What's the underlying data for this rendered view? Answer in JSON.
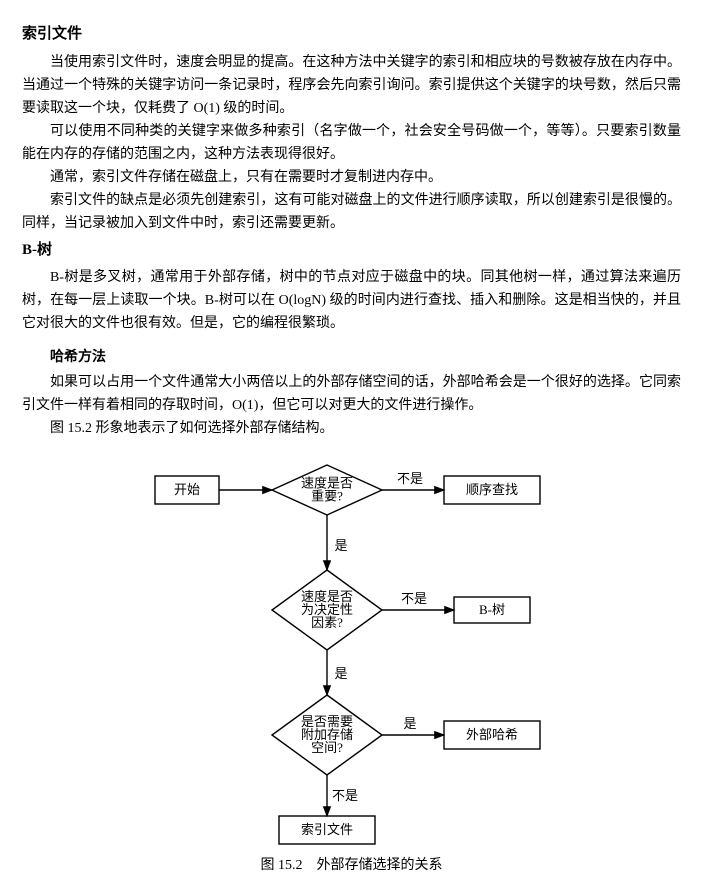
{
  "section1": {
    "heading": "索引文件",
    "p1": "当使用索引文件时，速度会明显的提高。在这种方法中关键字的索引和相应块的号数被存放在内存中。当通过一个特殊的关键字访问一条记录时，程序会先向索引询问。索引提供这个关键字的块号数，然后只需要读取这一个块，仅耗费了 O(1) 级的时间。",
    "p2": "可以使用不同种类的关键字来做多种索引（名字做一个，社会安全号码做一个，等等）。只要索引数量能在内存的存储的范围之内，这种方法表现得很好。",
    "p3": "通常，索引文件存储在磁盘上，只有在需要时才复制进内存中。",
    "p4": "索引文件的缺点是必须先创建索引，这有可能对磁盘上的文件进行顺序读取，所以创建索引是很慢的。同样，当记录被加入到文件中时，索引还需要更新。"
  },
  "section2": {
    "heading": "B-树",
    "p1": "B-树是多叉树，通常用于外部存储，树中的节点对应于磁盘中的块。同其他树一样，通过算法来遍历树，在每一层上读取一个块。B-树可以在 O(logN) 级的时间内进行查找、插入和删除。这是相当快的，并且它对很大的文件也很有效。但是，它的编程很繁琐。"
  },
  "section3": {
    "heading": "哈希方法",
    "p1": "如果可以占用一个文件通常大小两倍以上的外部存储空间的话，外部哈希会是一个很好的选择。它同索引文件一样有着相同的存取时间，O(1)，但它可以对更大的文件进行操作。",
    "p2": "图 15.2 形象地表示了如何选择外部存储结构。"
  },
  "flow": {
    "start": "开始",
    "d1a": "速度是否",
    "d1b": "重要?",
    "d2a": "速度是否",
    "d2b": "为决定性",
    "d2c": "因素?",
    "d3a": "是否需要",
    "d3b": "附加存储",
    "d3c": "空间?",
    "r1": "顺序查找",
    "r2": "B-树",
    "r3": "外部哈希",
    "r4": "索引文件",
    "yes": "是",
    "no": "不是",
    "stroke": "#000000",
    "fill": "#ffffff",
    "lw": 1.4
  },
  "caption": "图 15.2　外部存储选择的关系"
}
